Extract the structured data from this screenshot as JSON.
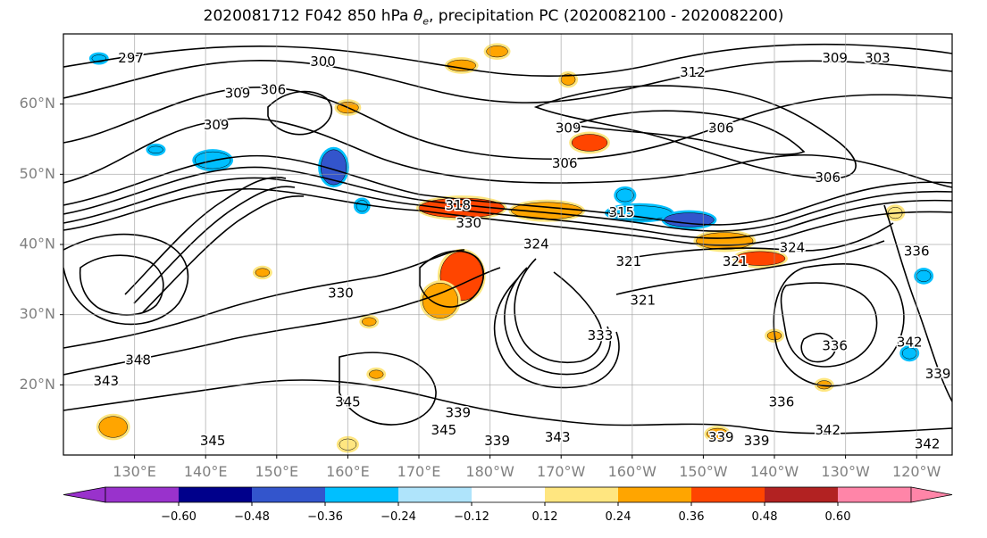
{
  "title": {
    "text_before": "2020081712 F042 850 hPa ",
    "theta_symbol": "θ",
    "theta_subscript": "e",
    "text_after": ", precipitation PC (2020082100 - 2020082200)"
  },
  "map": {
    "projection": "PlateCarree (Pacific centered)",
    "lon_range": [
      120,
      245
    ],
    "lat_range": [
      10,
      70
    ],
    "gridlines": true,
    "lat_ticks": [
      {
        "value": 60,
        "label": "60°N"
      },
      {
        "value": 50,
        "label": "50°N"
      },
      {
        "value": 40,
        "label": "40°N"
      },
      {
        "value": 30,
        "label": "30°N"
      },
      {
        "value": 20,
        "label": "20°N"
      }
    ],
    "lon_ticks": [
      {
        "value": 130,
        "label": "130°E"
      },
      {
        "value": 140,
        "label": "140°E"
      },
      {
        "value": 150,
        "label": "150°E"
      },
      {
        "value": 160,
        "label": "160°E"
      },
      {
        "value": 170,
        "label": "170°E"
      },
      {
        "value": 180,
        "label": "180°W"
      },
      {
        "value": 190,
        "label": "170°W"
      },
      {
        "value": 200,
        "label": "160°W"
      },
      {
        "value": 210,
        "label": "150°W"
      },
      {
        "value": 220,
        "label": "140°W"
      },
      {
        "value": 230,
        "label": "130°W"
      },
      {
        "value": 240,
        "label": "120°W"
      }
    ],
    "contour_labels": [
      {
        "text": "297",
        "lon": 129.5,
        "lat": 66.5
      },
      {
        "text": "300",
        "lon": 156.5,
        "lat": 66.0
      },
      {
        "text": "309",
        "lon": 144.5,
        "lat": 61.5
      },
      {
        "text": "306",
        "lon": 149.5,
        "lat": 62.0
      },
      {
        "text": "309",
        "lon": 141.5,
        "lat": 57.0
      },
      {
        "text": "312",
        "lon": 208.5,
        "lat": 64.5
      },
      {
        "text": "309",
        "lon": 228.5,
        "lat": 66.5
      },
      {
        "text": "303",
        "lon": 234.5,
        "lat": 66.5
      },
      {
        "text": "309",
        "lon": 191.0,
        "lat": 56.5
      },
      {
        "text": "306",
        "lon": 190.5,
        "lat": 51.5
      },
      {
        "text": "306",
        "lon": 212.5,
        "lat": 56.5
      },
      {
        "text": "306",
        "lon": 227.5,
        "lat": 49.5
      },
      {
        "text": "318",
        "lon": 175.5,
        "lat": 45.5
      },
      {
        "text": "315",
        "lon": 198.5,
        "lat": 44.5
      },
      {
        "text": "330",
        "lon": 177.0,
        "lat": 43.0
      },
      {
        "text": "324",
        "lon": 186.5,
        "lat": 40.0
      },
      {
        "text": "321",
        "lon": 199.5,
        "lat": 37.5
      },
      {
        "text": "321",
        "lon": 214.5,
        "lat": 37.5
      },
      {
        "text": "324",
        "lon": 222.5,
        "lat": 39.5
      },
      {
        "text": "336",
        "lon": 240.0,
        "lat": 39.0
      },
      {
        "text": "330",
        "lon": 159.0,
        "lat": 33.0
      },
      {
        "text": "321",
        "lon": 201.5,
        "lat": 32.0
      },
      {
        "text": "333",
        "lon": 195.5,
        "lat": 27.0
      },
      {
        "text": "348",
        "lon": 130.5,
        "lat": 23.5
      },
      {
        "text": "343",
        "lon": 126.0,
        "lat": 20.5
      },
      {
        "text": "345",
        "lon": 160.0,
        "lat": 17.5
      },
      {
        "text": "339",
        "lon": 175.5,
        "lat": 16.0
      },
      {
        "text": "345",
        "lon": 173.5,
        "lat": 13.5
      },
      {
        "text": "339",
        "lon": 181.0,
        "lat": 12.0
      },
      {
        "text": "343",
        "lon": 189.5,
        "lat": 12.5
      },
      {
        "text": "345",
        "lon": 141.0,
        "lat": 12.0
      },
      {
        "text": "336",
        "lon": 221.0,
        "lat": 17.5
      },
      {
        "text": "339",
        "lon": 212.5,
        "lat": 12.5
      },
      {
        "text": "339",
        "lon": 217.5,
        "lat": 12.0
      },
      {
        "text": "342",
        "lon": 227.5,
        "lat": 13.5
      },
      {
        "text": "342",
        "lon": 239.0,
        "lat": 26.0
      },
      {
        "text": "339",
        "lon": 243.0,
        "lat": 21.5
      },
      {
        "text": "336",
        "lon": 228.5,
        "lat": 25.5
      },
      {
        "text": "342",
        "lon": 241.5,
        "lat": 11.5
      }
    ],
    "precip_colors": {
      "pos_weak": "#ffe680",
      "pos_mid": "#ffa500",
      "pos_strong": "#ff4500",
      "neg_weak": "#00bfff",
      "neg_mid": "#3355cc"
    },
    "precip_patches": [
      {
        "lon": 176,
        "lat": 45.2,
        "rx": 6.0,
        "ry": 1.4,
        "sign": 1,
        "level": 3
      },
      {
        "lon": 188,
        "lat": 44.8,
        "rx": 5.0,
        "ry": 1.2,
        "sign": 1,
        "level": 2
      },
      {
        "lon": 201,
        "lat": 44.5,
        "rx": 4.5,
        "ry": 1.0,
        "sign": -1,
        "level": 1
      },
      {
        "lon": 208,
        "lat": 43.5,
        "rx": 3.5,
        "ry": 1.0,
        "sign": -1,
        "level": 2
      },
      {
        "lon": 213,
        "lat": 40.5,
        "rx": 4.0,
        "ry": 1.2,
        "sign": 1,
        "level": 2
      },
      {
        "lon": 218,
        "lat": 38.0,
        "rx": 3.5,
        "ry": 1.0,
        "sign": 1,
        "level": 3
      },
      {
        "lon": 176,
        "lat": 35.5,
        "rx": 3.0,
        "ry": 3.5,
        "sign": 1,
        "level": 3
      },
      {
        "lon": 173,
        "lat": 32.0,
        "rx": 2.5,
        "ry": 2.5,
        "sign": 1,
        "level": 2
      },
      {
        "lon": 158,
        "lat": 51.0,
        "rx": 1.8,
        "ry": 2.5,
        "sign": -1,
        "level": 2
      },
      {
        "lon": 141,
        "lat": 52.0,
        "rx": 2.5,
        "ry": 1.2,
        "sign": -1,
        "level": 1
      },
      {
        "lon": 194,
        "lat": 54.5,
        "rx": 2.5,
        "ry": 1.2,
        "sign": 1,
        "level": 3
      },
      {
        "lon": 160,
        "lat": 59.5,
        "rx": 1.5,
        "ry": 0.8,
        "sign": 1,
        "level": 2
      },
      {
        "lon": 176,
        "lat": 65.5,
        "rx": 2.0,
        "ry": 0.8,
        "sign": 1,
        "level": 2
      },
      {
        "lon": 181,
        "lat": 67.5,
        "rx": 1.5,
        "ry": 0.8,
        "sign": 1,
        "level": 2
      },
      {
        "lon": 191,
        "lat": 63.5,
        "rx": 1.0,
        "ry": 0.8,
        "sign": 1,
        "level": 2
      },
      {
        "lon": 199,
        "lat": 47.0,
        "rx": 1.2,
        "ry": 0.9,
        "sign": -1,
        "level": 1
      },
      {
        "lon": 162,
        "lat": 45.5,
        "rx": 0.8,
        "ry": 0.8,
        "sign": -1,
        "level": 1
      },
      {
        "lon": 163,
        "lat": 29.0,
        "rx": 1.0,
        "ry": 0.6,
        "sign": 1,
        "level": 2
      },
      {
        "lon": 164,
        "lat": 21.5,
        "rx": 1.0,
        "ry": 0.6,
        "sign": 1,
        "level": 2
      },
      {
        "lon": 212,
        "lat": 13.0,
        "rx": 1.5,
        "ry": 0.8,
        "sign": 1,
        "level": 2
      },
      {
        "lon": 220,
        "lat": 27.0,
        "rx": 1.0,
        "ry": 0.6,
        "sign": 1,
        "level": 2
      },
      {
        "lon": 241,
        "lat": 35.5,
        "rx": 1.0,
        "ry": 0.8,
        "sign": -1,
        "level": 1
      },
      {
        "lon": 239,
        "lat": 24.5,
        "rx": 1.0,
        "ry": 0.8,
        "sign": -1,
        "level": 1
      },
      {
        "lon": 125,
        "lat": 66.5,
        "rx": 1.0,
        "ry": 0.5,
        "sign": -1,
        "level": 1
      },
      {
        "lon": 133,
        "lat": 53.5,
        "rx": 1.0,
        "ry": 0.5,
        "sign": -1,
        "level": 1
      },
      {
        "lon": 148,
        "lat": 36.0,
        "rx": 1.0,
        "ry": 0.6,
        "sign": 1,
        "level": 2
      },
      {
        "lon": 127,
        "lat": 14.0,
        "rx": 2.0,
        "ry": 1.5,
        "sign": 1,
        "level": 2
      },
      {
        "lon": 160,
        "lat": 11.5,
        "rx": 1.2,
        "ry": 0.8,
        "sign": 1,
        "level": 1
      },
      {
        "lon": 227,
        "lat": 20.0,
        "rx": 1.0,
        "ry": 0.6,
        "sign": 1,
        "level": 2
      },
      {
        "lon": 237,
        "lat": 44.5,
        "rx": 1.0,
        "ry": 0.8,
        "sign": 1,
        "level": 1
      }
    ]
  },
  "colorbar": {
    "bounds": [
      -0.72,
      -0.6,
      -0.48,
      -0.36,
      -0.24,
      -0.12,
      0.12,
      0.24,
      0.36,
      0.48,
      0.6,
      0.72
    ],
    "colors": [
      "#9932cc",
      "#00008b",
      "#3355cc",
      "#00bfff",
      "#afe4fb",
      "#ffffff",
      "#ffe680",
      "#ffa500",
      "#ff4500",
      "#b22222",
      "#ff85a8"
    ],
    "under_color": "#9932cc",
    "over_color": "#ff85a8",
    "extend": "both",
    "tick_labels": [
      {
        "value": -0.6,
        "label": "−0.60"
      },
      {
        "value": -0.48,
        "label": "−0.48"
      },
      {
        "value": -0.36,
        "label": "−0.36"
      },
      {
        "value": -0.24,
        "label": "−0.24"
      },
      {
        "value": -0.12,
        "label": "−0.12"
      },
      {
        "value": 0.12,
        "label": "0.12"
      },
      {
        "value": 0.24,
        "label": "0.24"
      },
      {
        "value": 0.36,
        "label": "0.36"
      },
      {
        "value": 0.48,
        "label": "0.48"
      },
      {
        "value": 0.6,
        "label": "0.60"
      }
    ]
  }
}
